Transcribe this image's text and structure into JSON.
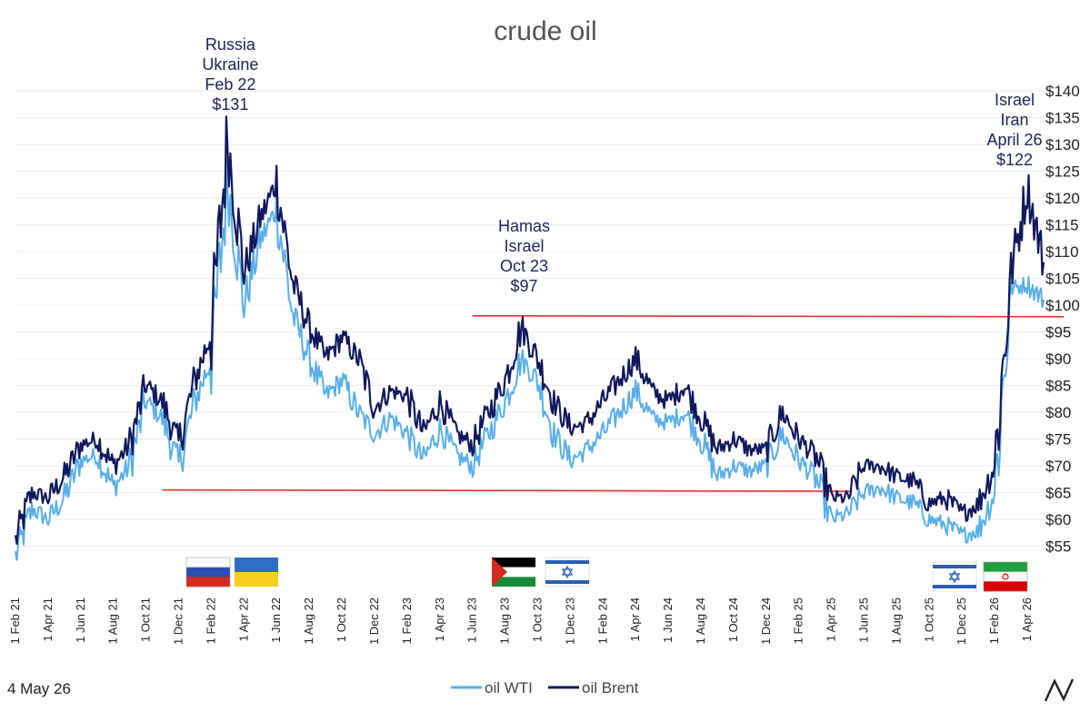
{
  "chart_data": {
    "type": "line",
    "title": "crude oil",
    "ylim": [
      50,
      140
    ],
    "y_ticks": [
      "$55",
      "$60",
      "$65",
      "$70",
      "$75",
      "$80",
      "$85",
      "$90",
      "$95",
      "$100",
      "$105",
      "$110",
      "$115",
      "$120",
      "$125",
      "$130",
      "$135",
      "$140"
    ],
    "x_ticks": [
      "1 Feb 21",
      "1 Apr 21",
      "1 Jun 21",
      "1 Aug 21",
      "1 Oct 21",
      "1 Dec 21",
      "1 Feb 22",
      "1 Apr 22",
      "1 Jun 22",
      "1 Aug 22",
      "1 Oct 22",
      "1 Dec 22",
      "1 Feb 23",
      "1 Apr 23",
      "1 Jun 23",
      "1 Aug 23",
      "1 Oct 23",
      "1 Dec 23",
      "1 Feb 24",
      "1 Apr 24",
      "1 Jun 24",
      "1 Aug 24",
      "1 Oct 24",
      "1 Dec 24",
      "1 Feb 25",
      "1 Apr 25",
      "1 Jun 25",
      "1 Aug 25",
      "1 Oct 25",
      "1 Dec 25",
      "1 Feb 26",
      "1 Apr 26"
    ],
    "grid": true,
    "legend_position": "bottom-center",
    "series": [
      {
        "name": "oil WTI",
        "color": "#5aaee8",
        "months": [
          "2021-02",
          "2021-03",
          "2021-04",
          "2021-05",
          "2021-06",
          "2021-07",
          "2021-08",
          "2021-09",
          "2021-10",
          "2021-11",
          "2021-12",
          "2022-01",
          "2022-02",
          "2022-03",
          "2022-04",
          "2022-05",
          "2022-06",
          "2022-07",
          "2022-08",
          "2022-09",
          "2022-10",
          "2022-11",
          "2022-12",
          "2023-01",
          "2023-02",
          "2023-03",
          "2023-04",
          "2023-05",
          "2023-06",
          "2023-07",
          "2023-08",
          "2023-09",
          "2023-10",
          "2023-11",
          "2023-12",
          "2024-01",
          "2024-02",
          "2024-03",
          "2024-04",
          "2024-05",
          "2024-06",
          "2024-07",
          "2024-08",
          "2024-09",
          "2024-10",
          "2024-11",
          "2024-12",
          "2025-01",
          "2025-02",
          "2025-03",
          "2025-04",
          "2025-05",
          "2025-06",
          "2025-07",
          "2025-08",
          "2025-09",
          "2025-10",
          "2025-11",
          "2025-12",
          "2026-01",
          "2026-02",
          "2026-03",
          "2026-04",
          "2026-05"
        ],
        "values": [
          53,
          62,
          60,
          64,
          71,
          72,
          66,
          70,
          82,
          79,
          70,
          82,
          90,
          123,
          100,
          112,
          118,
          98,
          90,
          83,
          86,
          80,
          76,
          79,
          76,
          71,
          77,
          72,
          70,
          76,
          82,
          90,
          86,
          76,
          71,
          73,
          76,
          80,
          84,
          79,
          78,
          80,
          75,
          68,
          70,
          69,
          70,
          76,
          71,
          68,
          60,
          61,
          65,
          66,
          64,
          63,
          60,
          59,
          57,
          58,
          65,
          103,
          104,
          101
        ]
      },
      {
        "name": "oil Brent",
        "color": "#10195c",
        "months": [
          "2021-02",
          "2021-03",
          "2021-04",
          "2021-05",
          "2021-06",
          "2021-07",
          "2021-08",
          "2021-09",
          "2021-10",
          "2021-11",
          "2021-12",
          "2022-01",
          "2022-02",
          "2022-03",
          "2022-04",
          "2022-05",
          "2022-06",
          "2022-07",
          "2022-08",
          "2022-09",
          "2022-10",
          "2022-11",
          "2022-12",
          "2023-01",
          "2023-02",
          "2023-03",
          "2023-04",
          "2023-05",
          "2023-06",
          "2023-07",
          "2023-08",
          "2023-09",
          "2023-10",
          "2023-11",
          "2023-12",
          "2024-01",
          "2024-02",
          "2024-03",
          "2024-04",
          "2024-05",
          "2024-06",
          "2024-07",
          "2024-08",
          "2024-09",
          "2024-10",
          "2024-11",
          "2024-12",
          "2025-01",
          "2025-02",
          "2025-03",
          "2025-04",
          "2025-05",
          "2025-06",
          "2025-07",
          "2025-08",
          "2025-09",
          "2025-10",
          "2025-11",
          "2025-12",
          "2026-01",
          "2026-02",
          "2026-03",
          "2026-04",
          "2026-05"
        ],
        "values": [
          56,
          65,
          64,
          68,
          74,
          75,
          70,
          74,
          85,
          82,
          74,
          86,
          95,
          131,
          106,
          116,
          123,
          104,
          96,
          90,
          94,
          90,
          81,
          84,
          83,
          76,
          82,
          76,
          74,
          80,
          86,
          96,
          90,
          82,
          77,
          78,
          82,
          86,
          90,
          84,
          82,
          85,
          79,
          73,
          75,
          73,
          73,
          80,
          75,
          72,
          64,
          64,
          70,
          70,
          68,
          67,
          63,
          64,
          61,
          63,
          70,
          106,
          122,
          108
        ]
      }
    ],
    "reference_lines": [
      {
        "value": 65.5,
        "from": "2021-11",
        "to": "2025-03",
        "color": "#e03030"
      },
      {
        "value": 98,
        "from": "2023-06",
        "to": "2026-05",
        "color": "#e03030"
      }
    ],
    "annotations": [
      {
        "lines": [
          "Russia",
          "Ukraine",
          "Feb 22",
          "$131"
        ],
        "at": "2022-03"
      },
      {
        "lines": [
          "Hamas",
          "Israel",
          "Oct 23",
          "$97"
        ],
        "at": "2023-09"
      },
      {
        "lines": [
          "Israel",
          "Iran",
          "April 26",
          "$122"
        ],
        "at": "2026-04"
      }
    ],
    "flags": [
      {
        "name": "russia-flag",
        "colors": [
          "#ffffff",
          "#2a4fb0",
          "#d52b1e"
        ],
        "at": "2021-12"
      },
      {
        "name": "ukraine-flag",
        "colors": [
          "#2e6ec4",
          "#f5d020"
        ],
        "at": "2022-04"
      },
      {
        "name": "palestine-flag",
        "colors": [
          "#000000",
          "#ffffff",
          "#1a8a3a",
          "#d52b1e"
        ],
        "at": "2023-08"
      },
      {
        "name": "israel-flag",
        "colors": [
          "#2a5fb8",
          "#ffffff"
        ],
        "at": "2023-12"
      },
      {
        "name": "israel-flag",
        "colors": [
          "#2a5fb8",
          "#ffffff"
        ],
        "at": "2025-12"
      },
      {
        "name": "iran-flag",
        "colors": [
          "#239f40",
          "#ffffff",
          "#da0000"
        ],
        "at": "2026-03"
      }
    ]
  },
  "date_stamp": "4 May 26",
  "logo_icon": "brand-logo-icon"
}
